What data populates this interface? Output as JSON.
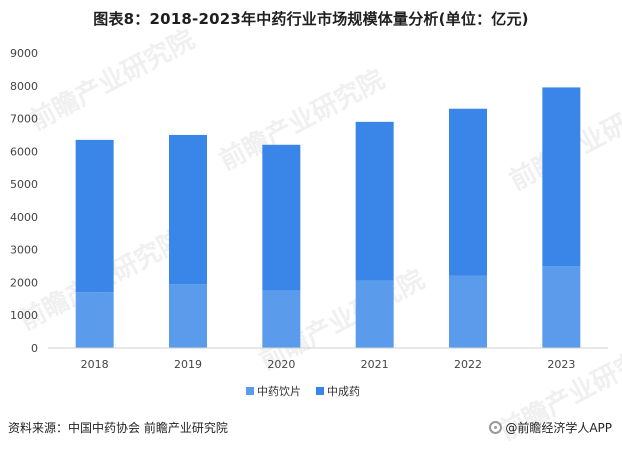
{
  "title": "图表8：2018-2023年中药行业市场规模体量分析(单位：亿元)",
  "source_text": "资料来源：中国中药协会 前瞻产业研究院",
  "brand_text": "@前瞻经济学人APP",
  "watermark_text": "前瞻产业研究院",
  "colors": {
    "series_bottom": "#5B9BEB",
    "series_top": "#3A86E8",
    "axis": "#d0d0d0",
    "tick_text": "#444444"
  },
  "chart_data": {
    "type": "bar",
    "stacked": true,
    "categories": [
      "2018",
      "2019",
      "2020",
      "2021",
      "2022",
      "2023"
    ],
    "series": [
      {
        "name": "中药饮片",
        "values": [
          1700,
          1950,
          1750,
          2050,
          2200,
          2500
        ]
      },
      {
        "name": "中成药",
        "values": [
          4650,
          4550,
          4450,
          4850,
          5100,
          5450
        ]
      }
    ],
    "ylim": [
      0,
      9000
    ],
    "yticks": [
      0,
      1000,
      2000,
      3000,
      4000,
      5000,
      6000,
      7000,
      8000,
      9000
    ],
    "grid": false,
    "legend_position": "bottom"
  }
}
